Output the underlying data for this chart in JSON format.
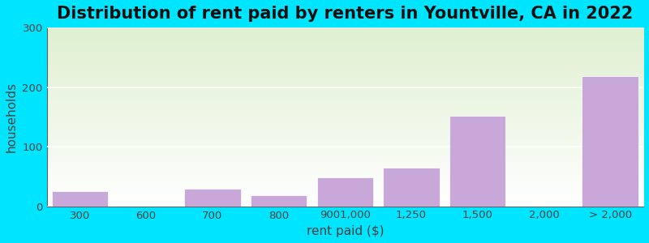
{
  "title": "Distribution of rent paid by renters in Yountville, CA in 2022",
  "xlabel": "rent paid ($)",
  "ylabel": "households",
  "categories": [
    "300",
    "600",
    "700",
    "800",
    "9001,000",
    "1,250",
    "1,500",
    "2,000",
    "> 2,000"
  ],
  "values": [
    25,
    0,
    30,
    18,
    48,
    65,
    152,
    0,
    218
  ],
  "bar_color": "#c8a8d8",
  "background_outer": "#00e5ff",
  "background_inner_top": "#f0f8e8",
  "background_inner_bottom": "#ffffff",
  "ylim": [
    0,
    300
  ],
  "yticks": [
    0,
    100,
    200,
    300
  ],
  "title_fontsize": 15,
  "label_fontsize": 11,
  "tick_fontsize": 9.5
}
